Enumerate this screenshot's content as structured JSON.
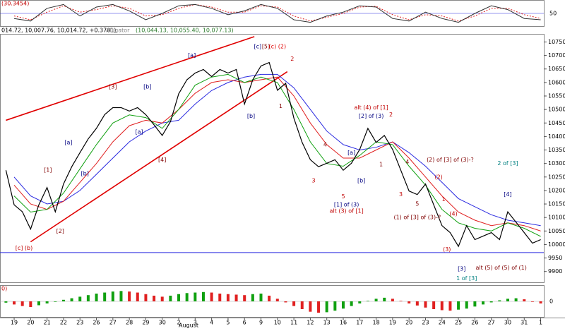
{
  "chart_data": {
    "type": "line",
    "oscillator_label": "(30.3454)",
    "histogram_label": "0)",
    "header": {
      "ohlc": "014.72, 10,007.76, 10,014.72, +0.3701)",
      "indicator": "Alligator",
      "values": "(10,044.13, 10,055.40, 10,077.13)"
    },
    "month_label": "August",
    "xlim": [
      -0.86,
      32.19
    ],
    "xticks": [
      {
        "value": 0,
        "label": "19"
      },
      {
        "value": 1,
        "label": "20"
      },
      {
        "value": 2,
        "label": "21"
      },
      {
        "value": 3,
        "label": "22"
      },
      {
        "value": 4,
        "label": "23"
      },
      {
        "value": 5,
        "label": "26"
      },
      {
        "value": 6,
        "label": "27"
      },
      {
        "value": 7,
        "label": "28"
      },
      {
        "value": 8,
        "label": "29"
      },
      {
        "value": 9,
        "label": "30"
      },
      {
        "value": 10,
        "label": "2"
      },
      {
        "value": 11,
        "label": "3"
      },
      {
        "value": 12,
        "label": "4"
      },
      {
        "value": 13,
        "label": "5"
      },
      {
        "value": 14,
        "label": "6"
      },
      {
        "value": 15,
        "label": "9"
      },
      {
        "value": 16,
        "label": "10"
      },
      {
        "value": 17,
        "label": "11"
      },
      {
        "value": 18,
        "label": "12"
      },
      {
        "value": 19,
        "label": "13"
      },
      {
        "value": 20,
        "label": "16"
      },
      {
        "value": 21,
        "label": "17"
      },
      {
        "value": 22,
        "label": "18"
      },
      {
        "value": 23,
        "label": "19"
      },
      {
        "value": 24,
        "label": "20"
      },
      {
        "value": 25,
        "label": "23"
      },
      {
        "value": 26,
        "label": "24"
      },
      {
        "value": 27,
        "label": "25"
      },
      {
        "value": 28,
        "label": "26"
      },
      {
        "value": 29,
        "label": "27"
      },
      {
        "value": 30,
        "label": "30"
      },
      {
        "value": 31,
        "label": "31"
      },
      {
        "value": 32,
        "label": "1"
      }
    ],
    "ylim": [
      9860,
      10780
    ],
    "yticks": [
      9900,
      9950,
      10000,
      10050,
      10100,
      10150,
      10200,
      10250,
      10300,
      10350,
      10400,
      10450,
      10500,
      10550,
      10600,
      10650,
      10700,
      10750
    ],
    "price": {
      "color": "#000000",
      "x": [
        -0.5,
        0,
        0.5,
        1,
        1.5,
        2,
        2.5,
        3,
        3.5,
        4,
        4.5,
        5,
        5.5,
        6,
        6.5,
        7,
        7.5,
        8,
        8.5,
        9,
        9.5,
        10,
        10.5,
        11,
        11.5,
        12,
        12.5,
        13,
        13.5,
        14,
        14.5,
        15,
        15.5,
        16,
        16.5,
        17,
        17.5,
        18,
        18.5,
        19,
        19.5,
        20,
        20.5,
        21,
        21.5,
        22,
        22.5,
        23,
        23.5,
        24,
        24.5,
        25,
        25.5,
        26,
        26.5,
        27,
        27.5,
        28,
        28.5,
        29,
        29.5,
        30,
        30.5,
        31,
        31.5,
        32
      ],
      "values": [
        10275,
        10147,
        10121,
        10057,
        10147,
        10211,
        10121,
        10224,
        10288,
        10340,
        10391,
        10430,
        10481,
        10507,
        10507,
        10494,
        10507,
        10481,
        10443,
        10404,
        10455,
        10558,
        10610,
        10635,
        10648,
        10622,
        10648,
        10635,
        10648,
        10520,
        10610,
        10661,
        10674,
        10571,
        10597,
        10468,
        10378,
        10314,
        10288,
        10301,
        10314,
        10275,
        10301,
        10352,
        10430,
        10378,
        10404,
        10352,
        10275,
        10198,
        10185,
        10224,
        10147,
        10070,
        10044,
        9993,
        10070,
        10018,
        10031,
        10044,
        10018,
        10121,
        10083,
        10044,
        10005,
        10018
      ]
    },
    "alligator_x": [
      0,
      1,
      2,
      3,
      4,
      5,
      6,
      7,
      8,
      9,
      10,
      11,
      12,
      13,
      14,
      15,
      16,
      17,
      18,
      19,
      20,
      21,
      22,
      23,
      24,
      25,
      26,
      27,
      28,
      29,
      30,
      31,
      32
    ],
    "series": [
      {
        "name": "jaw",
        "color": "#2a2ae0",
        "values": [
          10250,
          10180,
          10150,
          10160,
          10200,
          10260,
          10320,
          10380,
          10420,
          10450,
          10460,
          10520,
          10570,
          10600,
          10620,
          10630,
          10630,
          10580,
          10500,
          10420,
          10370,
          10350,
          10360,
          10380,
          10340,
          10290,
          10230,
          10170,
          10140,
          10110,
          10090,
          10080,
          10070
        ]
      },
      {
        "name": "teeth",
        "color": "#e02020",
        "values": [
          10220,
          10150,
          10130,
          10160,
          10230,
          10300,
          10380,
          10440,
          10460,
          10450,
          10500,
          10560,
          10600,
          10610,
          10600,
          10610,
          10620,
          10550,
          10450,
          10370,
          10320,
          10320,
          10350,
          10380,
          10320,
          10250,
          10180,
          10120,
          10090,
          10070,
          10080,
          10070,
          10050
        ]
      },
      {
        "name": "lips",
        "color": "#10a010",
        "values": [
          10180,
          10120,
          10130,
          10190,
          10280,
          10370,
          10450,
          10480,
          10470,
          10430,
          10500,
          10590,
          10620,
          10630,
          10600,
          10620,
          10600,
          10500,
          10380,
          10300,
          10290,
          10330,
          10380,
          10370,
          10290,
          10220,
          10130,
          10080,
          10060,
          10050,
          10080,
          10060,
          10030
        ]
      }
    ],
    "channel_lines": [
      {
        "x": [
          -0.5,
          14.6
        ],
        "y": [
          10460,
          10770
        ]
      },
      {
        "x": [
          1,
          16.6
        ],
        "y": [
          10010,
          10640
        ]
      }
    ],
    "channel_color": "#e00000",
    "hline": 9970,
    "hline_color": "#2a2ae0",
    "annotations": [
      {
        "text": "[c] (b)",
        "x": 0.6,
        "y": 9987,
        "color": "#c00000"
      },
      {
        "text": "[2]",
        "x": 2.8,
        "y": 10049,
        "color": "#800000"
      },
      {
        "text": "[1]",
        "x": 2.05,
        "y": 10275,
        "color": "#800000"
      },
      {
        "text": "[a]",
        "x": 3.3,
        "y": 10378,
        "color": "#000080"
      },
      {
        "text": "[b]",
        "x": 4.3,
        "y": 10262,
        "color": "#000080"
      },
      {
        "text": "[3]",
        "x": 6.0,
        "y": 10584,
        "color": "#800000"
      },
      {
        "text": "[a]",
        "x": 7.6,
        "y": 10417,
        "color": "#000080"
      },
      {
        "text": "[b]",
        "x": 8.1,
        "y": 10584,
        "color": "#000080"
      },
      {
        "text": "[4]",
        "x": 9.0,
        "y": 10314,
        "color": "#800000"
      },
      {
        "text": "[a]",
        "x": 10.8,
        "y": 10700,
        "color": "#000080"
      },
      {
        "text": "[c]",
        "x": 14.8,
        "y": 10733,
        "color": "#000080"
      },
      {
        "text": "[5]",
        "x": 15.3,
        "y": 10733,
        "color": "#800000"
      },
      {
        "text": "(c) (2)",
        "x": 16.0,
        "y": 10733,
        "color": "#e00000"
      },
      {
        "text": "2",
        "x": 16.9,
        "y": 10687,
        "color": "#c00000"
      },
      {
        "text": "1",
        "x": 16.2,
        "y": 10512,
        "color": "#800000"
      },
      {
        "text": "[b]",
        "x": 14.4,
        "y": 10476,
        "color": "#000080"
      },
      {
        "text": "3",
        "x": 18.2,
        "y": 10237,
        "color": "#c00000"
      },
      {
        "text": "4",
        "x": 18.9,
        "y": 10370,
        "color": "#800000"
      },
      {
        "text": "5",
        "x": 20.0,
        "y": 10177,
        "color": "#c00000"
      },
      {
        "text": "[a]",
        "x": 20.5,
        "y": 10340,
        "color": "#000080"
      },
      {
        "text": "[b]",
        "x": 21.1,
        "y": 10237,
        "color": "#000080"
      },
      {
        "text": "[1] of (3)",
        "x": 20.2,
        "y": 10147,
        "color": "#000080"
      },
      {
        "text": "alt (3) of [1]",
        "x": 20.2,
        "y": 10124,
        "color": "#c00000"
      },
      {
        "text": "alt (4) of [1]",
        "x": 21.7,
        "y": 10507,
        "color": "#c00000"
      },
      {
        "text": "[2] of (3)",
        "x": 21.7,
        "y": 10476,
        "color": "#000080"
      },
      {
        "text": "2",
        "x": 22.9,
        "y": 10481,
        "color": "#c00000"
      },
      {
        "text": "1",
        "x": 22.3,
        "y": 10296,
        "color": "#800000"
      },
      {
        "text": "4",
        "x": 23.9,
        "y": 10306,
        "color": "#800000"
      },
      {
        "text": "3",
        "x": 23.5,
        "y": 10185,
        "color": "#c00000"
      },
      {
        "text": "5",
        "x": 24.5,
        "y": 10150,
        "color": "#800000"
      },
      {
        "text": "(2) of [3] of (3)-?",
        "x": 26.5,
        "y": 10314,
        "color": "#800000"
      },
      {
        "text": "(1) of [3] of (3)-?",
        "x": 24.5,
        "y": 10100,
        "color": "#800000"
      },
      {
        "text": "(2)",
        "x": 25.8,
        "y": 10250,
        "color": "#c00000"
      },
      {
        "text": "1",
        "x": 26.1,
        "y": 10167,
        "color": "#c00000"
      },
      {
        "text": "(4)",
        "x": 26.7,
        "y": 10113,
        "color": "#c00000"
      },
      {
        "text": "(3)",
        "x": 26.3,
        "y": 9982,
        "color": "#c00000"
      },
      {
        "text": "[3]",
        "x": 27.2,
        "y": 9910,
        "color": "#000080"
      },
      {
        "text": "1 of [3]",
        "x": 27.5,
        "y": 9874,
        "color": "#008080"
      },
      {
        "text": "alt (5) of (5) of (1)",
        "x": 29.6,
        "y": 9913,
        "color": "#800000"
      },
      {
        "text": "2 of [3]",
        "x": 30.0,
        "y": 10301,
        "color": "#008080"
      },
      {
        "text": "[4]",
        "x": 30.0,
        "y": 10185,
        "color": "#000080"
      }
    ],
    "oscillator": {
      "ylim": [
        0,
        100
      ],
      "yticks": [
        50
      ],
      "x": [
        0,
        1,
        2,
        3,
        4,
        5,
        6,
        7,
        8,
        9,
        10,
        11,
        12,
        13,
        14,
        15,
        16,
        17,
        18,
        19,
        20,
        21,
        22,
        23,
        24,
        25,
        26,
        27,
        28,
        29,
        30,
        31,
        32
      ],
      "values": [
        30,
        20,
        70,
        85,
        40,
        75,
        85,
        60,
        25,
        50,
        80,
        85,
        70,
        45,
        60,
        85,
        70,
        25,
        15,
        40,
        55,
        80,
        75,
        30,
        20,
        55,
        30,
        15,
        50,
        80,
        65,
        30,
        25
      ],
      "signal": [
        40,
        25,
        55,
        80,
        55,
        65,
        80,
        70,
        40,
        45,
        70,
        85,
        75,
        55,
        55,
        80,
        75,
        40,
        20,
        35,
        50,
        75,
        78,
        45,
        25,
        45,
        40,
        20,
        40,
        70,
        70,
        45,
        30
      ],
      "color": "#303030",
      "signal_color": "#e02020"
    },
    "histogram": {
      "ylim": [
        -60,
        60
      ],
      "yticks": [
        0
      ],
      "up_color": "#10a010",
      "down_color": "#e02020",
      "values": [
        -5,
        -12,
        -18,
        -22,
        -15,
        -8,
        -2,
        6,
        12,
        18,
        24,
        30,
        34,
        38,
        40,
        38,
        34,
        28,
        22,
        18,
        22,
        28,
        32,
        34,
        36,
        34,
        30,
        28,
        26,
        24,
        28,
        30,
        22,
        10,
        -4,
        -18,
        -30,
        -40,
        -44,
        -42,
        -36,
        -28,
        -18,
        -8,
        2,
        10,
        14,
        10,
        2,
        -8,
        -16,
        -24,
        -30,
        -34,
        -36,
        -32,
        -28,
        -20,
        -12,
        -4,
        4,
        10,
        12,
        8,
        -2,
        -8
      ]
    }
  }
}
